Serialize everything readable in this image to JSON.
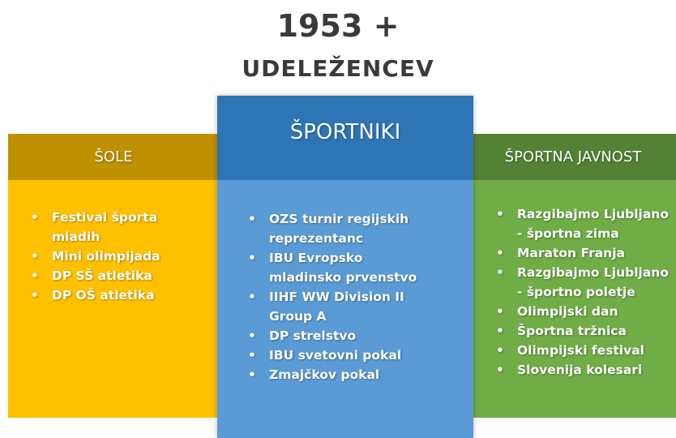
{
  "title": "1953 +",
  "subtitle": "UDELEŽENCEV",
  "columns": [
    {
      "header": "ŠOLE",
      "items": [
        [
          "Festival športa",
          "mladih"
        ],
        [
          "Mini olimpijada"
        ],
        [
          "DP SŠ atletika"
        ],
        [
          "DP OŠ atletika"
        ]
      ]
    },
    {
      "header": "ŠPORTNIKI",
      "items": [
        [
          "OZS turnir regijskih",
          "reprezentanc"
        ],
        [
          "IBU Evropsko",
          "mladinsko prvenstvo"
        ],
        [
          "IIHF WW Division II",
          "Group A"
        ],
        [
          "DP strelstvo"
        ],
        [
          "IBU svetovni pokal"
        ],
        [
          "Zmajčkov pokal"
        ]
      ]
    },
    {
      "header": "ŠPORTNA JAVNOST",
      "items": [
        [
          "Razgibajmo Ljubljano",
          "- športna zima"
        ],
        [
          "Maraton Franja"
        ],
        [
          "Razgibajmo Ljubljano",
          "- športno poletje"
        ],
        [
          "Olimpijski dan"
        ],
        [
          "Športna tržnica"
        ],
        [
          "Olimpijski festival"
        ],
        [
          "Slovenija kolesari"
        ]
      ]
    }
  ]
}
